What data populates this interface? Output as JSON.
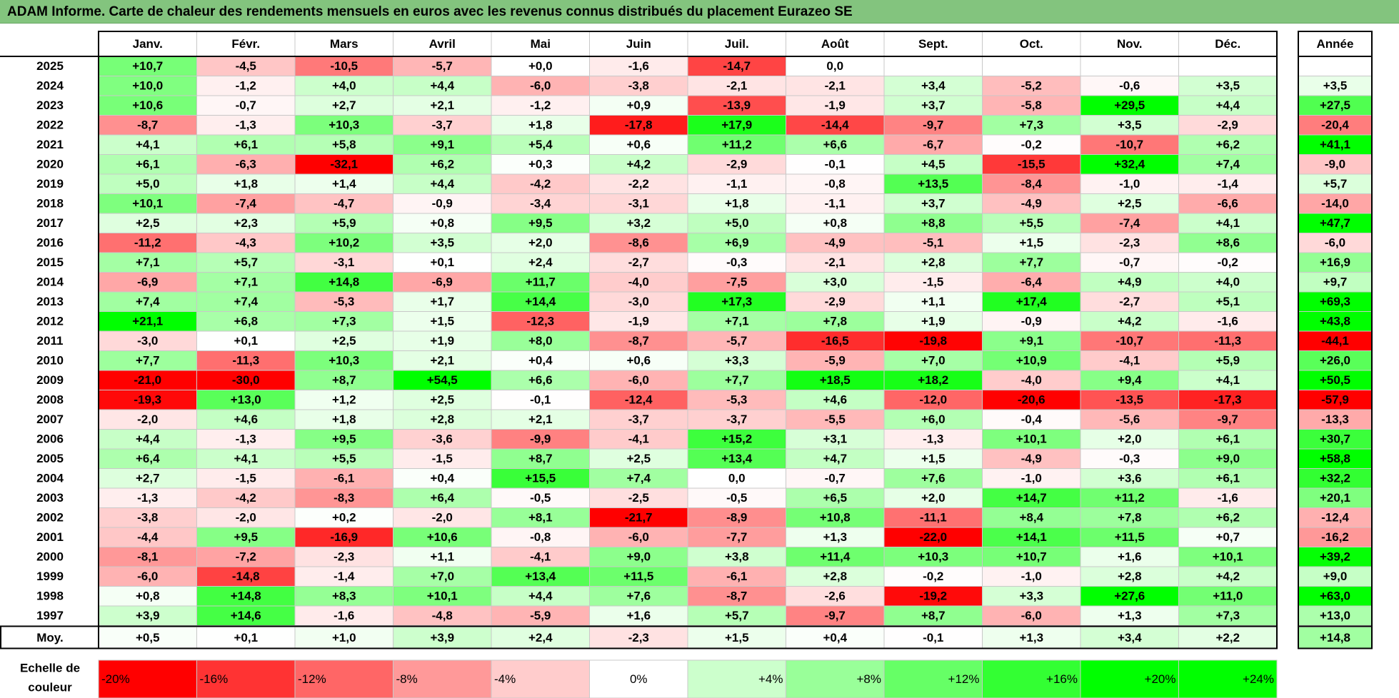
{
  "title": "ADAM Informe. Carte de chaleur des rendements mensuels en euros avec les revenus connus distribués du placement Eurazeo SE",
  "chart_data": {
    "type": "heatmap",
    "title": "ADAM Informe. Carte de chaleur des rendements mensuels en euros avec les revenus connus distribués du placement Eurazeo SE",
    "columns": [
      "Janv.",
      "Févr.",
      "Mars",
      "Avril",
      "Mai",
      "Juin",
      "Juil.",
      "Août",
      "Sept.",
      "Oct.",
      "Nov.",
      "Déc."
    ],
    "year_header": "Année",
    "rows": [
      {
        "label": "2025",
        "values": [
          "+10,7",
          "-4,5",
          "-10,5",
          "-5,7",
          "+0,0",
          "-1,6",
          "-14,7",
          "0,0",
          "",
          "",
          "",
          ""
        ],
        "year": ""
      },
      {
        "label": "2024",
        "values": [
          "+10,0",
          "-1,2",
          "+4,0",
          "+4,4",
          "-6,0",
          "-3,8",
          "-2,1",
          "-2,1",
          "+3,4",
          "-5,2",
          "-0,6",
          "+3,5"
        ],
        "year": "+3,5"
      },
      {
        "label": "2023",
        "values": [
          "+10,6",
          "-0,7",
          "+2,7",
          "+2,1",
          "-1,2",
          "+0,9",
          "-13,9",
          "-1,9",
          "+3,7",
          "-5,8",
          "+29,5",
          "+4,4"
        ],
        "year": "+27,5"
      },
      {
        "label": "2022",
        "values": [
          "-8,7",
          "-1,3",
          "+10,3",
          "-3,7",
          "+1,8",
          "-17,8",
          "+17,9",
          "-14,4",
          "-9,7",
          "+7,3",
          "+3,5",
          "-2,9"
        ],
        "year": "-20,4"
      },
      {
        "label": "2021",
        "values": [
          "+4,1",
          "+6,1",
          "+5,8",
          "+9,1",
          "+5,4",
          "+0,6",
          "+11,2",
          "+6,6",
          "-6,7",
          "-0,2",
          "-10,7",
          "+6,2"
        ],
        "year": "+41,1"
      },
      {
        "label": "2020",
        "values": [
          "+6,1",
          "-6,3",
          "-32,1",
          "+6,2",
          "+0,3",
          "+4,2",
          "-2,9",
          "-0,1",
          "+4,5",
          "-15,5",
          "+32,4",
          "+7,4"
        ],
        "year": "-9,0"
      },
      {
        "label": "2019",
        "values": [
          "+5,0",
          "+1,8",
          "+1,4",
          "+4,4",
          "-4,2",
          "-2,2",
          "-1,1",
          "-0,8",
          "+13,5",
          "-8,4",
          "-1,0",
          "-1,4"
        ],
        "year": "+5,7"
      },
      {
        "label": "2018",
        "values": [
          "+10,1",
          "-7,4",
          "-4,7",
          "-0,9",
          "-3,4",
          "-3,1",
          "+1,8",
          "-1,1",
          "+3,7",
          "-4,9",
          "+2,5",
          "-6,6"
        ],
        "year": "-14,0"
      },
      {
        "label": "2017",
        "values": [
          "+2,5",
          "+2,3",
          "+5,9",
          "+0,8",
          "+9,5",
          "+3,2",
          "+5,0",
          "+0,8",
          "+8,8",
          "+5,5",
          "-7,4",
          "+4,1"
        ],
        "year": "+47,7"
      },
      {
        "label": "2016",
        "values": [
          "-11,2",
          "-4,3",
          "+10,2",
          "+3,5",
          "+2,0",
          "-8,6",
          "+6,9",
          "-4,9",
          "-5,1",
          "+1,5",
          "-2,3",
          "+8,6"
        ],
        "year": "-6,0"
      },
      {
        "label": "2015",
        "values": [
          "+7,1",
          "+5,7",
          "-3,1",
          "+0,1",
          "+2,4",
          "-2,7",
          "-0,3",
          "-2,1",
          "+2,8",
          "+7,7",
          "-0,7",
          "-0,2"
        ],
        "year": "+16,9"
      },
      {
        "label": "2014",
        "values": [
          "-6,9",
          "+7,1",
          "+14,8",
          "-6,9",
          "+11,7",
          "-4,0",
          "-7,5",
          "+3,0",
          "-1,5",
          "-6,4",
          "+4,9",
          "+4,0"
        ],
        "year": "+9,7"
      },
      {
        "label": "2013",
        "values": [
          "+7,4",
          "+7,4",
          "-5,3",
          "+1,7",
          "+14,4",
          "-3,0",
          "+17,3",
          "-2,9",
          "+1,1",
          "+17,4",
          "-2,7",
          "+5,1"
        ],
        "year": "+69,3"
      },
      {
        "label": "2012",
        "values": [
          "+21,1",
          "+6,8",
          "+7,3",
          "+1,5",
          "-12,3",
          "-1,9",
          "+7,1",
          "+7,8",
          "+1,9",
          "-0,9",
          "+4,2",
          "-1,6"
        ],
        "year": "+43,8"
      },
      {
        "label": "2011",
        "values": [
          "-3,0",
          "+0,1",
          "+2,5",
          "+1,9",
          "+8,0",
          "-8,7",
          "-5,7",
          "-16,5",
          "-19,8",
          "+9,1",
          "-10,7",
          "-11,3"
        ],
        "year": "-44,1"
      },
      {
        "label": "2010",
        "values": [
          "+7,7",
          "-11,3",
          "+10,3",
          "+2,1",
          "+0,4",
          "+0,6",
          "+3,3",
          "-5,9",
          "+7,0",
          "+10,9",
          "-4,1",
          "+5,9"
        ],
        "year": "+26,0"
      },
      {
        "label": "2009",
        "values": [
          "-21,0",
          "-30,0",
          "+8,7",
          "+54,5",
          "+6,6",
          "-6,0",
          "+7,7",
          "+18,5",
          "+18,2",
          "-4,0",
          "+9,4",
          "+4,1"
        ],
        "year": "+50,5"
      },
      {
        "label": "2008",
        "values": [
          "-19,3",
          "+13,0",
          "+1,2",
          "+2,5",
          "-0,1",
          "-12,4",
          "-5,3",
          "+4,6",
          "-12,0",
          "-20,6",
          "-13,5",
          "-17,3"
        ],
        "year": "-57,9"
      },
      {
        "label": "2007",
        "values": [
          "-2,0",
          "+4,6",
          "+1,8",
          "+2,8",
          "+2,1",
          "-3,7",
          "-3,7",
          "-5,5",
          "+6,0",
          "-0,4",
          "-5,6",
          "-9,7"
        ],
        "year": "-13,3"
      },
      {
        "label": "2006",
        "values": [
          "+4,4",
          "-1,3",
          "+9,5",
          "-3,6",
          "-9,9",
          "-4,1",
          "+15,2",
          "+3,1",
          "-1,3",
          "+10,1",
          "+2,0",
          "+6,1"
        ],
        "year": "+30,7"
      },
      {
        "label": "2005",
        "values": [
          "+6,4",
          "+4,1",
          "+5,5",
          "-1,5",
          "+8,7",
          "+2,5",
          "+13,4",
          "+4,7",
          "+1,5",
          "-4,9",
          "-0,3",
          "+9,0"
        ],
        "year": "+58,8"
      },
      {
        "label": "2004",
        "values": [
          "+2,7",
          "-1,5",
          "-6,1",
          "+0,4",
          "+15,5",
          "+7,4",
          "0,0",
          "-0,7",
          "+7,6",
          "-1,0",
          "+3,6",
          "+6,1"
        ],
        "year": "+32,2"
      },
      {
        "label": "2003",
        "values": [
          "-1,3",
          "-4,2",
          "-8,3",
          "+6,4",
          "-0,5",
          "-2,5",
          "-0,5",
          "+6,5",
          "+2,0",
          "+14,7",
          "+11,2",
          "-1,6"
        ],
        "year": "+20,1"
      },
      {
        "label": "2002",
        "values": [
          "-3,8",
          "-2,0",
          "+0,2",
          "-2,0",
          "+8,1",
          "-21,7",
          "-8,9",
          "+10,8",
          "-11,1",
          "+8,4",
          "+7,8",
          "+6,2"
        ],
        "year": "-12,4"
      },
      {
        "label": "2001",
        "values": [
          "-4,4",
          "+9,5",
          "-16,9",
          "+10,6",
          "-0,8",
          "-6,0",
          "-7,7",
          "+1,3",
          "-22,0",
          "+14,1",
          "+11,5",
          "+0,7"
        ],
        "year": "-16,2"
      },
      {
        "label": "2000",
        "values": [
          "-8,1",
          "-7,2",
          "-2,3",
          "+1,1",
          "-4,1",
          "+9,0",
          "+3,8",
          "+11,4",
          "+10,3",
          "+10,7",
          "+1,6",
          "+10,1"
        ],
        "year": "+39,2"
      },
      {
        "label": "1999",
        "values": [
          "-6,0",
          "-14,8",
          "-1,4",
          "+7,0",
          "+13,4",
          "+11,5",
          "-6,1",
          "+2,8",
          "-0,2",
          "-1,0",
          "+2,8",
          "+4,2"
        ],
        "year": "+9,0"
      },
      {
        "label": "1998",
        "values": [
          "+0,8",
          "+14,8",
          "+8,3",
          "+10,1",
          "+4,4",
          "+7,6",
          "-8,7",
          "-2,6",
          "-19,2",
          "+3,3",
          "+27,6",
          "+11,0"
        ],
        "year": "+63,0"
      },
      {
        "label": "1997",
        "values": [
          "+3,9",
          "+14,6",
          "-1,6",
          "-4,8",
          "-5,9",
          "+1,6",
          "+5,7",
          "-9,7",
          "+8,7",
          "-6,0",
          "+1,3",
          "+7,3"
        ],
        "year": "+13,0"
      }
    ],
    "average": {
      "label": "Moy.",
      "values": [
        "+0,5",
        "+0,1",
        "+1,0",
        "+3,9",
        "+2,4",
        "-2,3",
        "+1,5",
        "+0,4",
        "-0,1",
        "+1,3",
        "+3,4",
        "+2,2"
      ],
      "year": "+14,8"
    },
    "scale": {
      "label_line1": "Echelle de",
      "label_line2": "couleur",
      "ticks": [
        "-20%",
        "-16%",
        "-12%",
        "-8%",
        "-4%",
        "0%",
        "+4%",
        "+8%",
        "+12%",
        "+16%",
        "+20%",
        "+24%"
      ]
    },
    "colors": {
      "negative_max": "#ff0000",
      "neutral": "#ffffff",
      "positive_max": "#00ff00",
      "title_bar": "#83c47e"
    }
  }
}
